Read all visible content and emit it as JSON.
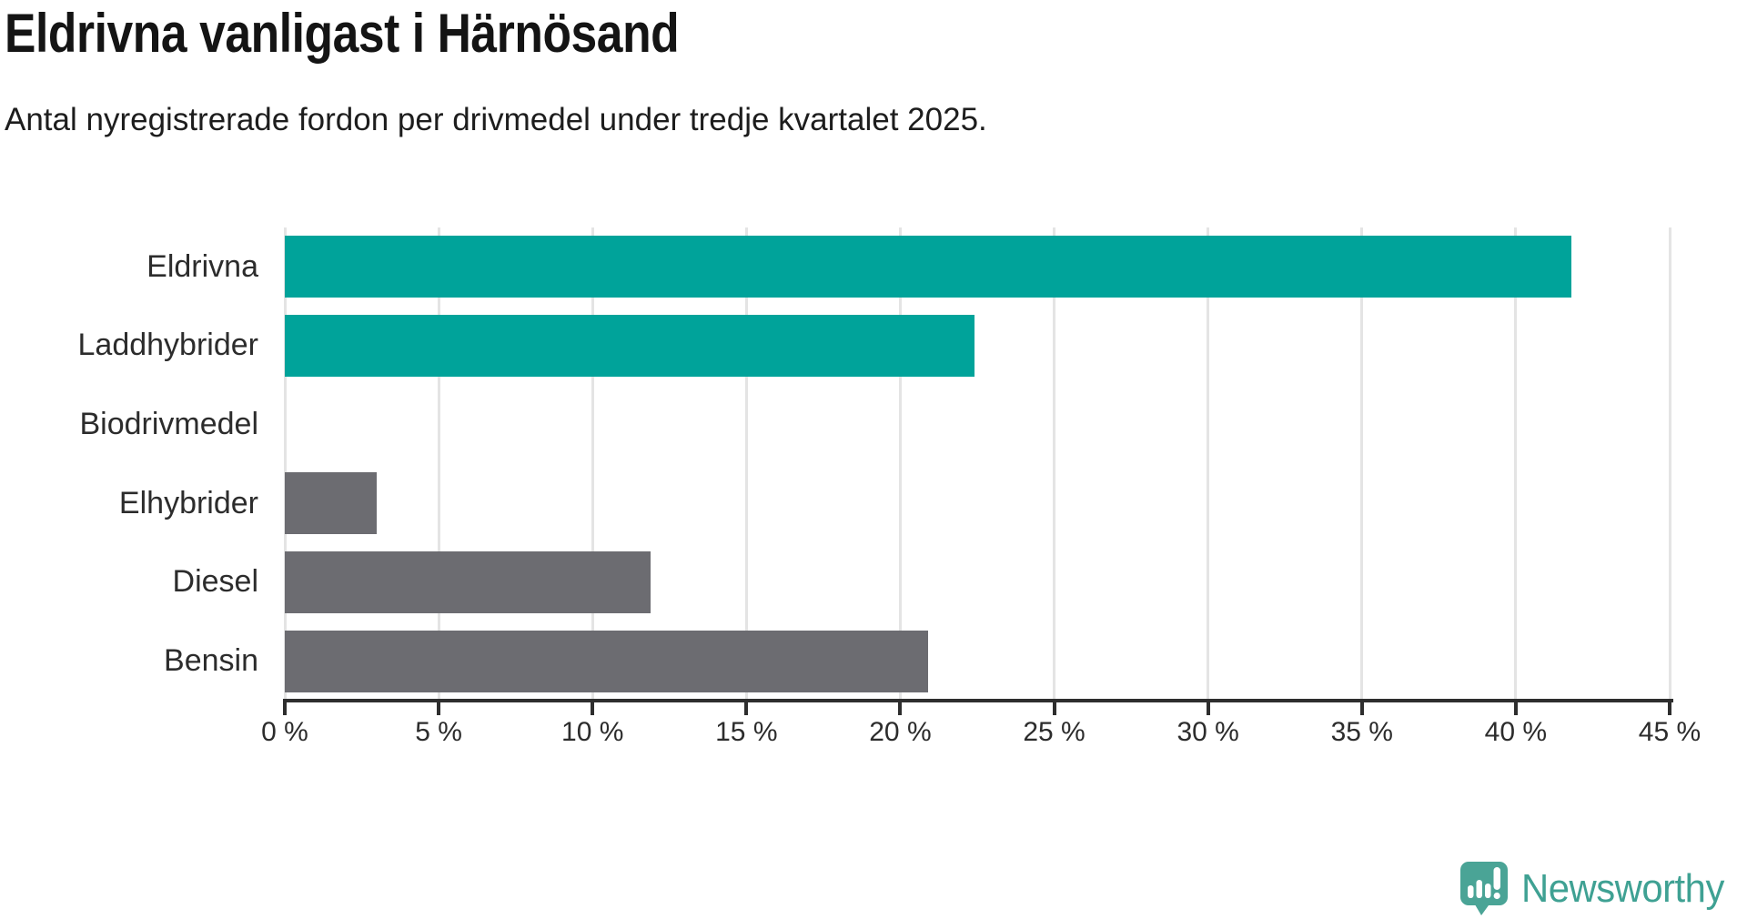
{
  "header": {
    "title": "Eldrivna vanligast i Härnösand",
    "subtitle": "Antal nyregistrerade fordon per drivmedel under tredje kvartalet 2025."
  },
  "chart_data": {
    "type": "bar",
    "orientation": "horizontal",
    "title": "Eldrivna vanligast i Härnösand",
    "subtitle": "Antal nyregistrerade fordon per drivmedel under tredje kvartalet 2025.",
    "categories": [
      "Eldrivna",
      "Laddhybrider",
      "Biodrivmedel",
      "Elhybrider",
      "Diesel",
      "Bensin"
    ],
    "values": [
      41.8,
      22.4,
      0,
      3.0,
      11.9,
      20.9
    ],
    "unit": "%",
    "xlim": [
      0,
      45
    ],
    "x_tick_values": [
      0,
      5,
      10,
      15,
      20,
      25,
      30,
      35,
      40,
      45
    ],
    "x_tick_labels": [
      "0 %",
      "5 %",
      "10 %",
      "15 %",
      "20 %",
      "25 %",
      "30 %",
      "35 %",
      "40 %",
      "45 %"
    ],
    "grid": true,
    "legend": "none",
    "bar_colors": [
      "#00a39a",
      "#00a39a",
      "#6c6c71",
      "#6c6c71",
      "#6c6c71",
      "#6c6c71"
    ],
    "highlight_color": "#00a39a",
    "default_color": "#6c6c71",
    "gridline_color": "#e4e4e4",
    "axis_color": "#2e2e2e"
  },
  "branding": {
    "logo_text": "Newsworthy",
    "logo_color": "#3fa193",
    "logo_icon": "newsworthy-speech-bubble-chart-icon",
    "logo_icon_color": "#4aa496"
  }
}
